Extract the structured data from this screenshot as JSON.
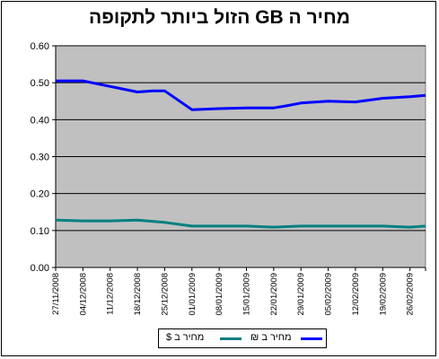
{
  "chart_data": {
    "type": "line",
    "title": "מחיר ה GB הזול ביותר לתקופה",
    "xlabel": "",
    "ylabel": "",
    "ylim": [
      0,
      0.6
    ],
    "yticks": [
      "0.00",
      "0.10",
      "0.20",
      "0.30",
      "0.40",
      "0.50",
      "0.60"
    ],
    "x": [
      "27/11/2008",
      "04/12/2008",
      "11/12/2008",
      "18/12/2008",
      "25/12/2008",
      "01/01/2009",
      "08/01/2009",
      "15/01/2009",
      "22/01/2009",
      "29/01/2009",
      "05/02/2009",
      "12/02/2009",
      "19/02/2009",
      "26/02/2009"
    ],
    "grid": true,
    "legend_position": "bottom",
    "plot_background": "#c0c0c0",
    "series": [
      {
        "name": "מחיר ב ₪",
        "color": "#0000ff",
        "x": [
          "27/11/2008",
          "04/12/2008",
          "11/12/2008",
          "18/12/2008",
          "22/12/2008",
          "25/12/2008",
          "01/01/2009",
          "08/01/2009",
          "15/01/2009",
          "22/01/2009",
          "25/01/2009",
          "29/01/2009",
          "05/02/2009",
          "12/02/2009",
          "19/02/2009",
          "26/02/2009",
          "02/03/2009"
        ],
        "values": [
          0.505,
          0.505,
          0.49,
          0.475,
          0.478,
          0.478,
          0.427,
          0.43,
          0.432,
          0.432,
          0.437,
          0.445,
          0.45,
          0.448,
          0.458,
          0.462,
          0.466
        ]
      },
      {
        "name": "מחיר ב $",
        "color": "#008080",
        "x": [
          "27/11/2008",
          "04/12/2008",
          "11/12/2008",
          "18/12/2008",
          "25/12/2008",
          "01/01/2009",
          "08/01/2009",
          "15/01/2009",
          "22/01/2009",
          "29/01/2009",
          "05/02/2009",
          "12/02/2009",
          "19/02/2009",
          "26/02/2009",
          "02/03/2009"
        ],
        "values": [
          0.128,
          0.126,
          0.126,
          0.128,
          0.122,
          0.112,
          0.112,
          0.112,
          0.109,
          0.112,
          0.112,
          0.112,
          0.112,
          0.109,
          0.112
        ]
      }
    ]
  }
}
